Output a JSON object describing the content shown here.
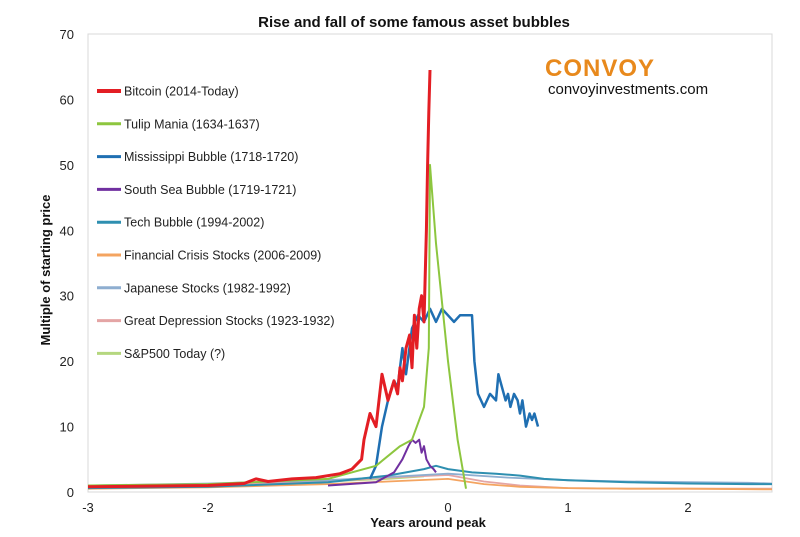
{
  "colors": {
    "bitcoin": "#e31e24",
    "tulip": "#8dc63f",
    "mississippi": "#1f6fb2",
    "southsea": "#7030a0",
    "tech": "#2e8fb0",
    "financial": "#f4a460",
    "japanese": "#8eaed0",
    "depression": "#e4a5a5",
    "sp500": "#b5d77f",
    "brand": "#e8891c"
  },
  "branding": {
    "name": "CONVOY",
    "url": "convoyinvestments.com"
  },
  "chart_data": {
    "type": "line",
    "title": "Rise and fall of some famous asset bubbles",
    "xlabel": "Years around peak",
    "ylabel": "Multiple of starting price",
    "xlim": [
      -3,
      2.7
    ],
    "ylim": [
      0,
      70
    ],
    "xticks": [
      "-3",
      "-2",
      "-1",
      "0",
      "1",
      "2"
    ],
    "yticks": [
      "0",
      "10",
      "20",
      "30",
      "40",
      "50",
      "60",
      "70"
    ],
    "grid": false,
    "legend_position": "top-left",
    "series": [
      {
        "name": "Bitcoin (2014-Today)",
        "color_key": "bitcoin",
        "x": [
          -3.0,
          -2.5,
          -2.0,
          -1.7,
          -1.6,
          -1.5,
          -1.3,
          -1.1,
          -0.9,
          -0.8,
          -0.72,
          -0.7,
          -0.65,
          -0.6,
          -0.55,
          -0.5,
          -0.45,
          -0.42,
          -0.4,
          -0.38,
          -0.35,
          -0.32,
          -0.3,
          -0.28,
          -0.26,
          -0.24,
          -0.22,
          -0.2,
          -0.18,
          -0.17,
          -0.16,
          -0.15
        ],
        "y": [
          0.8,
          0.9,
          1.0,
          1.3,
          2.0,
          1.6,
          2.0,
          2.2,
          2.8,
          3.5,
          5.0,
          8.0,
          12.0,
          10.0,
          18.0,
          14.0,
          17.0,
          15.0,
          19.0,
          17.0,
          22.0,
          24.0,
          19.0,
          27.0,
          22.0,
          28.0,
          30.0,
          26.0,
          40.0,
          50.0,
          58.0,
          64.5
        ]
      },
      {
        "name": "Tulip Mania (1634-1637)",
        "color_key": "tulip",
        "x": [
          -3.0,
          -2.0,
          -1.0,
          -0.6,
          -0.4,
          -0.3,
          -0.2,
          -0.16,
          -0.15,
          -0.1,
          0.0,
          0.08,
          0.15
        ],
        "y": [
          1.0,
          1.2,
          2.0,
          4.0,
          7.0,
          8.0,
          13.0,
          22.0,
          50.0,
          38.0,
          20.0,
          8.0,
          0.5
        ]
      },
      {
        "name": "Mississippi Bubble (1718-1720)",
        "color_key": "mississippi",
        "x": [
          -0.65,
          -0.6,
          -0.55,
          -0.5,
          -0.45,
          -0.42,
          -0.38,
          -0.35,
          -0.3,
          -0.25,
          -0.2,
          -0.15,
          -0.1,
          -0.05,
          0.0,
          0.05,
          0.1,
          0.15,
          0.2,
          0.22,
          0.25,
          0.3,
          0.35,
          0.4,
          0.42,
          0.45,
          0.48,
          0.5,
          0.52,
          0.55,
          0.58,
          0.6,
          0.62,
          0.65,
          0.68,
          0.7,
          0.72,
          0.75
        ],
        "y": [
          2.0,
          4.0,
          10.0,
          14.0,
          17.0,
          16.0,
          22.0,
          18.0,
          25.0,
          27.0,
          26.0,
          28.0,
          26.0,
          28.0,
          27.0,
          26.0,
          27.0,
          27.0,
          27.0,
          20.0,
          15.0,
          13.0,
          15.0,
          14.0,
          18.0,
          16.0,
          14.0,
          15.0,
          13.0,
          15.0,
          14.0,
          12.0,
          14.0,
          10.0,
          12.0,
          11.0,
          12.0,
          10.0
        ]
      },
      {
        "name": "South Sea Bubble (1719-1721)",
        "color_key": "southsea",
        "x": [
          -1.0,
          -0.6,
          -0.45,
          -0.38,
          -0.33,
          -0.3,
          -0.27,
          -0.24,
          -0.22,
          -0.2,
          -0.18,
          -0.15,
          -0.12,
          -0.1
        ],
        "y": [
          1.0,
          1.5,
          3.0,
          5.0,
          7.0,
          8.0,
          7.5,
          8.0,
          6.0,
          7.0,
          5.0,
          4.0,
          3.5,
          3.0
        ]
      },
      {
        "name": "Tech Bubble (1994-2002)",
        "color_key": "tech",
        "x": [
          -3.0,
          -2.0,
          -1.0,
          -0.5,
          -0.2,
          -0.1,
          0.0,
          0.2,
          0.4,
          0.6,
          0.8,
          1.0,
          1.5,
          2.0,
          2.5,
          2.7
        ],
        "y": [
          0.6,
          0.8,
          1.5,
          2.5,
          3.5,
          4.0,
          3.5,
          3.0,
          2.8,
          2.5,
          2.0,
          1.8,
          1.5,
          1.3,
          1.2,
          1.2
        ]
      },
      {
        "name": "Financial Crisis Stocks (2006-2009)",
        "color_key": "financial",
        "x": [
          -3.0,
          -2.0,
          -1.0,
          -0.5,
          0.0,
          0.3,
          0.6,
          1.0,
          1.5,
          2.0,
          2.7
        ],
        "y": [
          0.5,
          0.7,
          1.2,
          1.6,
          2.0,
          1.2,
          0.8,
          0.6,
          0.5,
          0.5,
          0.4
        ]
      },
      {
        "name": "Japanese Stocks (1982-1992)",
        "color_key": "japanese",
        "x": [
          -3.0,
          -2.0,
          -1.0,
          -0.5,
          0.0,
          0.5,
          1.0,
          1.5,
          2.0,
          2.5,
          2.7
        ],
        "y": [
          1.0,
          1.3,
          1.8,
          2.3,
          2.8,
          2.2,
          1.8,
          1.6,
          1.5,
          1.4,
          1.3
        ]
      },
      {
        "name": "Great Depression Stocks (1923-1932)",
        "color_key": "depression",
        "x": [
          -3.0,
          -2.0,
          -1.0,
          -0.5,
          0.0,
          0.3,
          0.6,
          1.0,
          1.5,
          2.0,
          2.7
        ],
        "y": [
          1.0,
          1.2,
          1.6,
          2.2,
          2.6,
          1.6,
          1.0,
          0.6,
          0.5,
          0.5,
          0.5
        ]
      },
      {
        "name": "S&P500 Today (?)",
        "color_key": "sp500",
        "x": [
          -3.0,
          -2.5,
          -2.0,
          -1.5,
          -1.0,
          -0.5,
          -0.2
        ],
        "y": [
          0.5,
          0.8,
          1.0,
          1.3,
          1.6,
          2.0,
          2.4
        ]
      }
    ]
  }
}
